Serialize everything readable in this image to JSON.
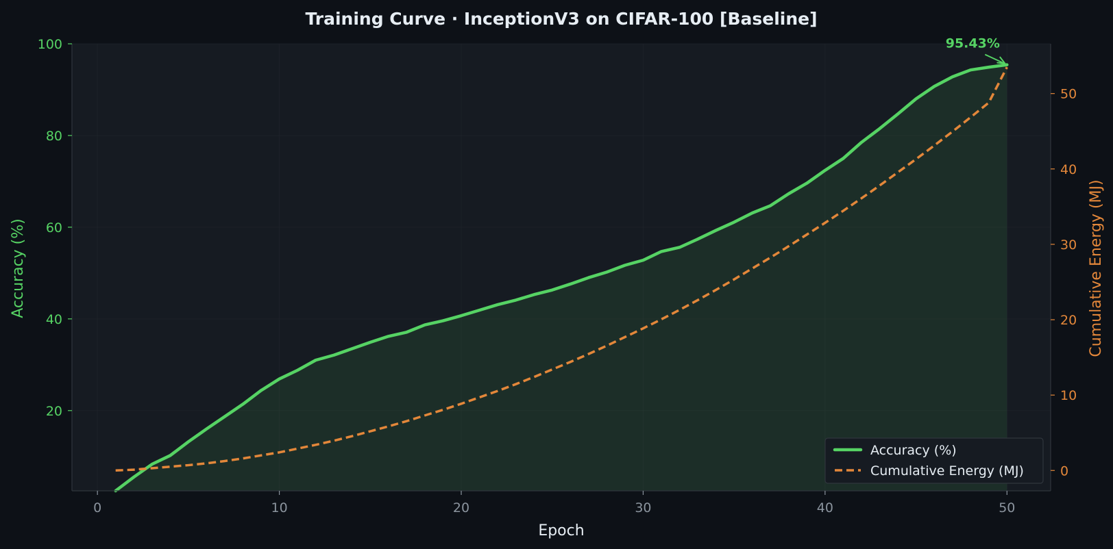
{
  "colors": {
    "background": "#0d1117",
    "plot_background": "#161b22",
    "accuracy": "#56d364",
    "energy": "#e3873a",
    "x_tick": "#8b949e",
    "text": "#e6edf3",
    "grid": "#21262d"
  },
  "chart_data": {
    "type": "line",
    "title": "Training Curve  ·  InceptionV3 on CIFAR-100  [Baseline]",
    "xlabel": "Epoch",
    "ylabel": "Accuracy (%)",
    "y2label": "Cumulative Energy (MJ)",
    "xlim": [
      -1.4,
      52.4
    ],
    "ylim": [
      2.5,
      100
    ],
    "y2lim": [
      -2.7,
      56.6
    ],
    "x_ticks": [
      "0",
      "10",
      "20",
      "30",
      "40",
      "50"
    ],
    "y_ticks": [
      "20",
      "40",
      "60",
      "80",
      "100"
    ],
    "y2_ticks": [
      "0",
      "10",
      "20",
      "30",
      "40",
      "50"
    ],
    "grid": true,
    "legend_position": "bottom-right",
    "fill_under": "Accuracy (%)",
    "annotation": {
      "text": "95.43%",
      "x": 50,
      "y": 95.43,
      "series": "Accuracy (%)"
    },
    "x": [
      1,
      2,
      3,
      4,
      5,
      6,
      7,
      8,
      9,
      10,
      11,
      12,
      13,
      14,
      15,
      16,
      17,
      18,
      19,
      20,
      21,
      22,
      23,
      24,
      25,
      26,
      27,
      28,
      29,
      30,
      31,
      32,
      33,
      34,
      35,
      36,
      37,
      38,
      39,
      40,
      41,
      42,
      43,
      44,
      45,
      46,
      47,
      48,
      49,
      50
    ],
    "series": [
      {
        "name": "Accuracy (%)",
        "axis": "left",
        "style": "solid",
        "values": [
          2.5,
          5.5,
          8.3,
          10.2,
          13.2,
          16.0,
          18.7,
          21.4,
          24.4,
          26.9,
          28.8,
          31.0,
          32.1,
          33.5,
          34.9,
          36.2,
          37.1,
          38.7,
          39.6,
          40.7,
          41.9,
          43.1,
          44.1,
          45.3,
          46.3,
          47.6,
          49.0,
          50.2,
          51.7,
          52.8,
          54.7,
          55.6,
          57.4,
          59.3,
          61.1,
          63.1,
          64.7,
          67.3,
          69.6,
          72.4,
          75.0,
          78.5,
          81.5,
          84.7,
          88.0,
          90.7,
          92.8,
          94.3,
          94.9,
          95.43
        ]
      },
      {
        "name": "Cumulative Energy (MJ)",
        "axis": "right",
        "style": "dashed",
        "values": [
          0.0,
          0.1,
          0.3,
          0.5,
          0.7,
          0.95,
          1.25,
          1.6,
          2.0,
          2.4,
          2.9,
          3.4,
          3.95,
          4.55,
          5.2,
          5.85,
          6.55,
          7.3,
          8.05,
          8.85,
          9.7,
          10.55,
          11.45,
          12.4,
          13.4,
          14.4,
          15.45,
          16.55,
          17.7,
          18.85,
          20.05,
          21.3,
          22.6,
          23.95,
          25.35,
          26.8,
          28.25,
          29.75,
          31.3,
          32.85,
          34.45,
          36.1,
          37.8,
          39.55,
          41.3,
          43.1,
          44.95,
          46.85,
          48.8,
          53.5
        ]
      }
    ]
  }
}
